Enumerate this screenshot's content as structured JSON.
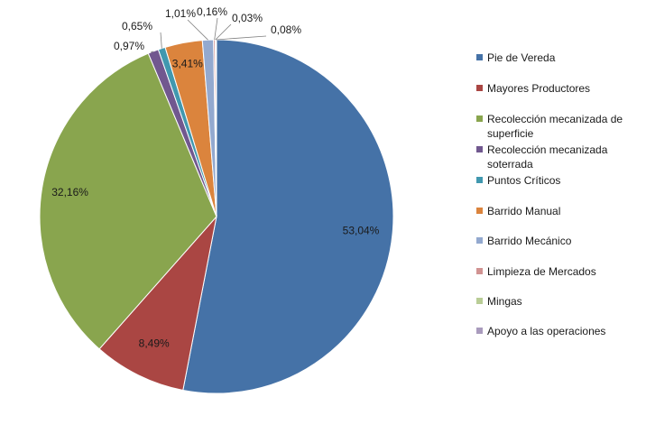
{
  "chart_data": {
    "type": "pie",
    "categories": [
      "Pie de Vereda",
      "Mayores Productores",
      "Recolección mecanizada de superficie",
      "Recolección mecanizada soterrada",
      "Puntos Críticos",
      "Barrido Manual",
      "Barrido Mecánico",
      "Limpieza de Mercados",
      "Mingas",
      "Apoyo a las operaciones"
    ],
    "values": [
      53.04,
      8.49,
      32.16,
      0.97,
      0.65,
      3.41,
      1.01,
      0.16,
      0.03,
      0.08
    ],
    "data_labels": [
      "53,04%",
      "8,49%",
      "32,16%",
      "0,97%",
      "0,65%",
      "3,41%",
      "1,01%",
      "0,16%",
      "0,03%",
      "0,08%"
    ],
    "colors": [
      "#4572A7",
      "#AA4643",
      "#89A54E",
      "#71588F",
      "#4198AF",
      "#DB843D",
      "#93A9CF",
      "#D19392",
      "#B9CD96",
      "#A99BBD"
    ],
    "legend_placement": "right",
    "title": "",
    "start_angle_deg": 0,
    "direction": "clockwise"
  }
}
